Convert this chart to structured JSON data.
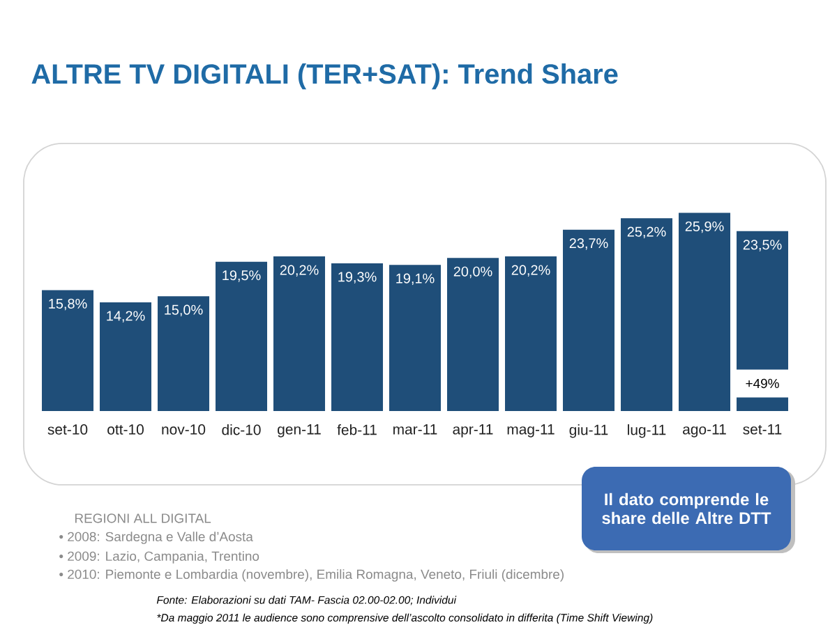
{
  "chart_data": {
    "type": "bar",
    "title": "ALTRE TV DIGITALI (TER+SAT): Trend Share",
    "categories": [
      "set-10",
      "ott-10",
      "nov-10",
      "dic-10",
      "gen-11",
      "feb-11",
      "mar-11",
      "apr-11",
      "mag-11",
      "giu-11",
      "lug-11",
      "ago-11",
      "set-11"
    ],
    "values": [
      15.8,
      14.2,
      15.0,
      19.5,
      20.2,
      19.3,
      19.1,
      20.0,
      20.2,
      23.7,
      25.2,
      25.9,
      23.5
    ],
    "value_labels": [
      "15,8%",
      "14,2%",
      "15,0%",
      "19,5%",
      "20,2%",
      "19,3%",
      "19,1%",
      "20,0%",
      "20,2%",
      "23,7%",
      "25,2%",
      "25,9%",
      "23,5%"
    ],
    "color": "#1f4e79",
    "ylim": [
      0,
      26
    ],
    "tick_labels": "x",
    "annotations": [
      "Il dato comprende le share delle Altre DTT",
      "REGIONI ALL DIGITAL",
      "• 2008: Sardegna e Valle d’Aosta",
      "• 2009: Lazio, Campania, Trentino",
      "• 2010: Piemonte e Lombardia (novembre), Emilia Romagna, Veneto, Friuli (dicembre)",
      "Fonte: Elaborazioni su dati TAM- Fascia 02.00-02.00; Individui",
      "*Da maggio 2011 le audience sono comprensive dell’ascolto consolidato in differita (Time Shift Viewing)",
      {
        "text": "+49%",
        "x": "set-11",
        "y": 3.6
      }
    ]
  }
}
